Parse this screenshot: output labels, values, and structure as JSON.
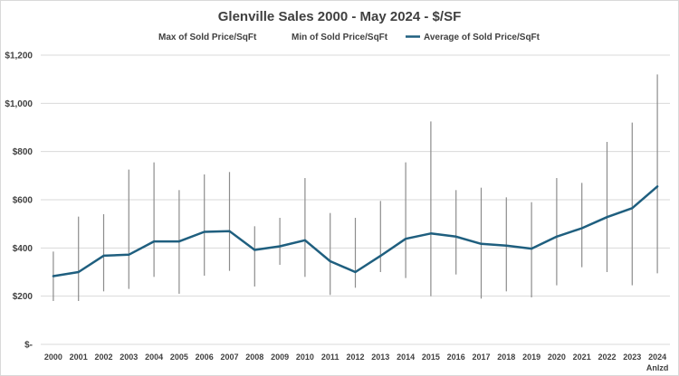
{
  "chart_data": {
    "type": "line",
    "title": "Glenville Sales 2000 - May 2024 - $/SF",
    "categories": [
      "2000",
      "2001",
      "2002",
      "2003",
      "2004",
      "2005",
      "2006",
      "2007",
      "2008",
      "2009",
      "2010",
      "2011",
      "2012",
      "2013",
      "2014",
      "2015",
      "2016",
      "2017",
      "2018",
      "2019",
      "2020",
      "2021",
      "2022",
      "2023",
      "2024"
    ],
    "category_sublabels": {
      "2024": "Anlzd"
    },
    "series": [
      {
        "name": "Max of Sold Price/SqFt",
        "style": "high-low",
        "color": "#7f7f7f",
        "values": [
          385,
          530,
          540,
          725,
          755,
          640,
          705,
          715,
          490,
          525,
          690,
          545,
          525,
          595,
          755,
          925,
          640,
          650,
          610,
          590,
          690,
          670,
          840,
          920,
          1120
        ]
      },
      {
        "name": "Min of Sold Price/SqFt",
        "style": "high-low",
        "color": "#7f7f7f",
        "values": [
          180,
          180,
          220,
          230,
          280,
          210,
          285,
          305,
          240,
          330,
          280,
          205,
          235,
          300,
          275,
          200,
          290,
          190,
          220,
          195,
          245,
          320,
          300,
          245,
          295
        ]
      },
      {
        "name": "Average of Sold Price/SqFt",
        "style": "line",
        "color": "#1f5f7f",
        "values": [
          283,
          300,
          368,
          372,
          427,
          427,
          467,
          470,
          392,
          407,
          432,
          345,
          300,
          367,
          438,
          460,
          447,
          417,
          410,
          397,
          447,
          482,
          528,
          565,
          655
        ]
      }
    ],
    "y_tick_labels": [
      "$-",
      "$200",
      "$400",
      "$600",
      "$800",
      "$1,000",
      "$1,200"
    ],
    "y_tick_values": [
      0,
      200,
      400,
      600,
      800,
      1000,
      1200
    ],
    "ylim": [
      0,
      1200
    ],
    "grid": true,
    "legend_position": "top"
  }
}
